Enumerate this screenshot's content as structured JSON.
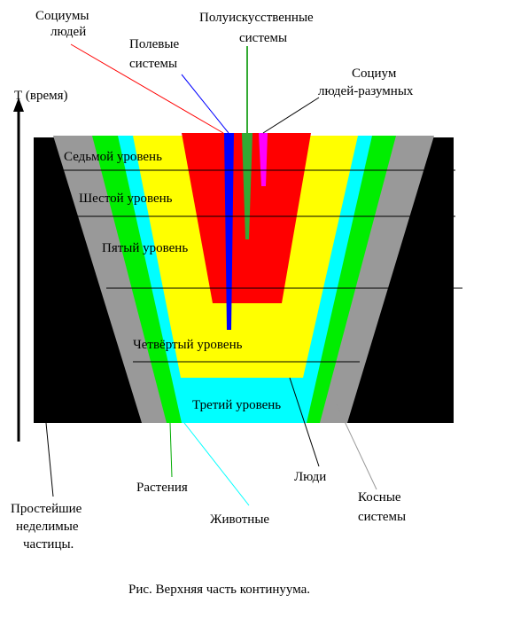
{
  "axis": {
    "label": "Т (время)"
  },
  "levels": {
    "seventh": "Седьмой уровень",
    "sixth": "Шестой уровень",
    "fifth": "Пятый уровень",
    "fourth": "Четвёртый уровень",
    "third": "Третий уровень"
  },
  "labels": {
    "socium_people_line1": "Социумы",
    "socium_people_line2": "людей",
    "field_systems_line1": "Полевые",
    "field_systems_line2": "системы",
    "semiartificial_line1": "Полуискусственные",
    "semiartificial_line2": "системы",
    "socium_rational_line1": "Социум",
    "socium_rational_line2": "людей-разумных",
    "simplest_line1": "Простейшие",
    "simplest_line2": "неделимые",
    "simplest_line3": "частицы.",
    "plants": "Растения",
    "animals": "Животные",
    "people": "Люди",
    "inert_line1": "Косные",
    "inert_line2": "системы"
  },
  "caption": "Рис. Верхняя часть континуума.",
  "colors": {
    "particles": "#000000",
    "inert": "#999999",
    "plants": "#00ee00",
    "animals": "#00ffff",
    "people": "#ffff00",
    "socium": "#ff0000",
    "field": "#0000ff",
    "semiartificial": "#33aa33",
    "rational": "#ff00ff"
  }
}
